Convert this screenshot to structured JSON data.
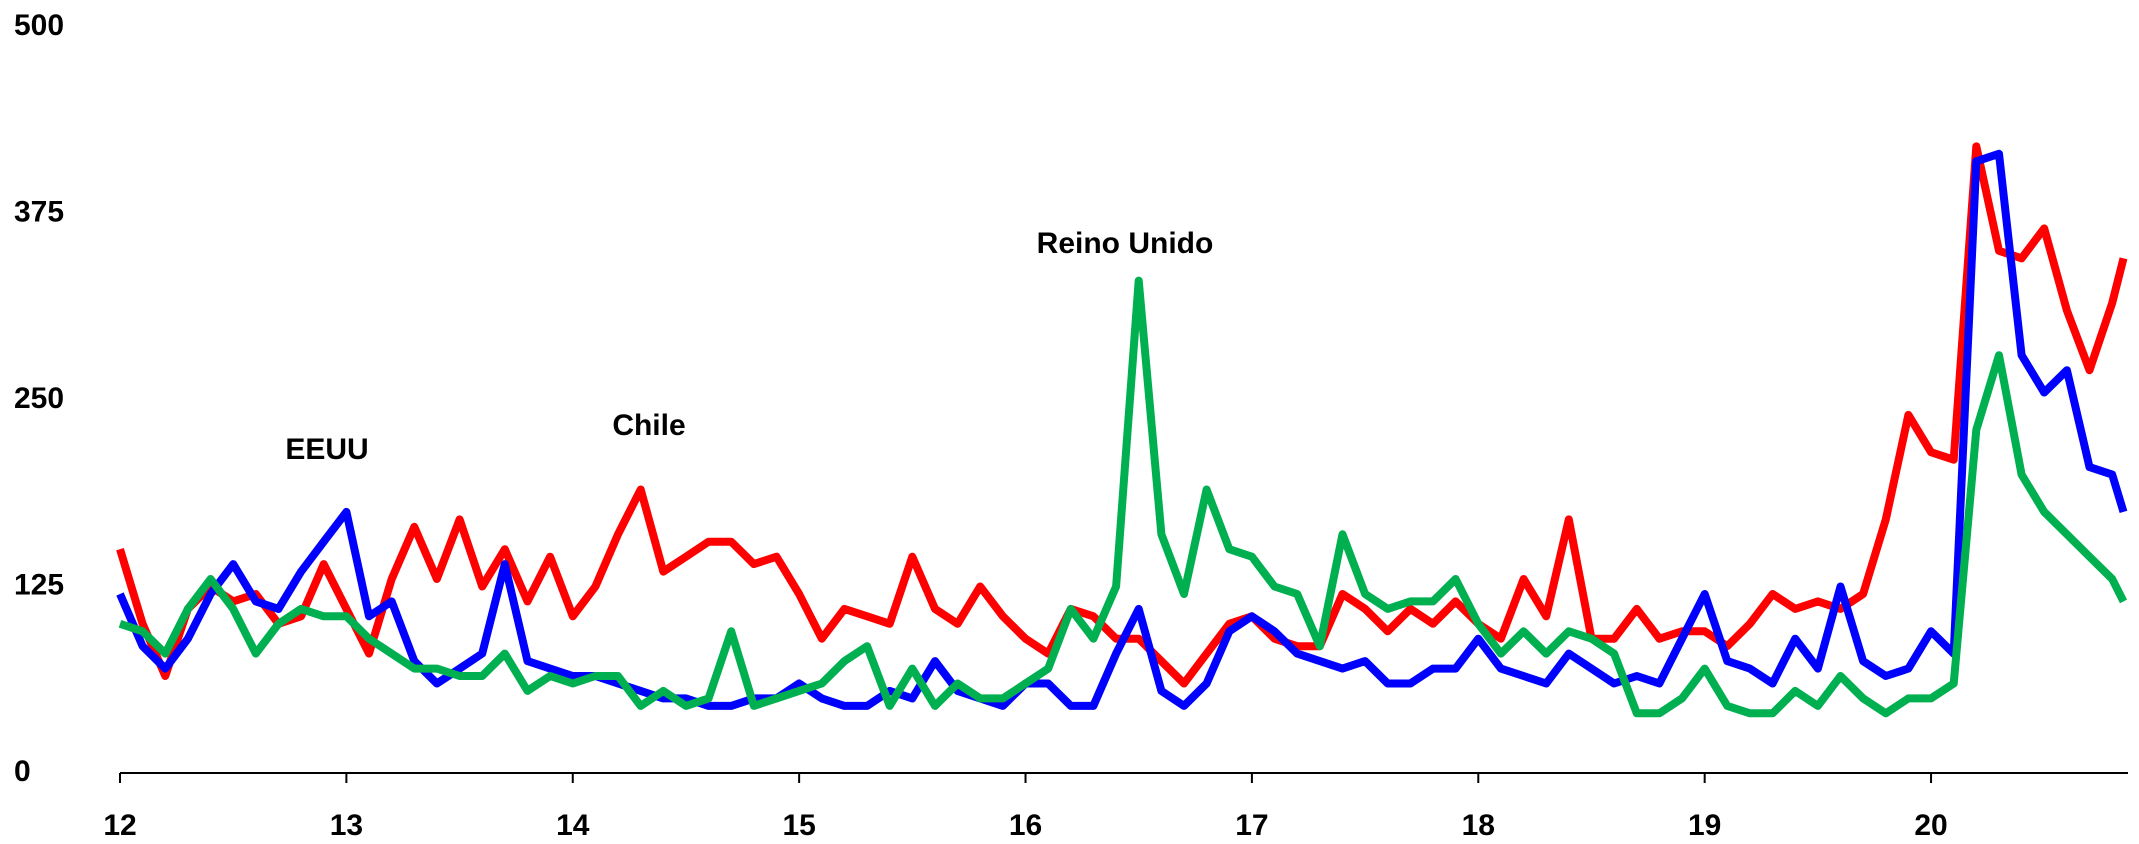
{
  "chart_data": {
    "type": "line",
    "x": [
      12.0,
      12.1,
      12.2,
      12.3,
      12.4,
      12.5,
      12.6,
      12.7,
      12.8,
      12.9,
      13.0,
      13.1,
      13.2,
      13.3,
      13.4,
      13.5,
      13.6,
      13.7,
      13.8,
      13.9,
      14.0,
      14.1,
      14.2,
      14.3,
      14.4,
      14.5,
      14.6,
      14.7,
      14.8,
      14.9,
      15.0,
      15.1,
      15.2,
      15.3,
      15.4,
      15.5,
      15.6,
      15.7,
      15.8,
      15.9,
      16.0,
      16.1,
      16.2,
      16.3,
      16.4,
      16.5,
      16.6,
      16.7,
      16.8,
      16.9,
      17.0,
      17.1,
      17.2,
      17.3,
      17.4,
      17.5,
      17.6,
      17.7,
      17.8,
      17.9,
      18.0,
      18.1,
      18.2,
      18.3,
      18.4,
      18.5,
      18.6,
      18.7,
      18.8,
      18.9,
      19.0,
      19.1,
      19.2,
      19.3,
      19.4,
      19.5,
      19.6,
      19.7,
      19.8,
      19.9,
      20.0,
      20.1,
      20.2,
      20.3,
      20.4,
      20.5,
      20.6,
      20.7,
      20.8,
      20.85
    ],
    "series": [
      {
        "name": "Chile",
        "color": "#ff0000",
        "values": [
          150,
          100,
          65,
          110,
          125,
          115,
          120,
          100,
          105,
          140,
          110,
          80,
          130,
          165,
          130,
          170,
          125,
          150,
          115,
          145,
          105,
          125,
          160,
          190,
          135,
          145,
          155,
          155,
          140,
          145,
          120,
          90,
          110,
          105,
          100,
          145,
          110,
          100,
          125,
          105,
          90,
          80,
          110,
          105,
          90,
          90,
          75,
          60,
          80,
          100,
          105,
          90,
          85,
          85,
          120,
          110,
          95,
          110,
          100,
          115,
          100,
          90,
          130,
          105,
          170,
          90,
          90,
          110,
          90,
          95,
          95,
          85,
          100,
          120,
          110,
          115,
          110,
          120,
          170,
          240,
          215,
          210,
          420,
          350,
          345,
          365,
          310,
          270,
          315,
          345
        ]
      },
      {
        "name": "EEUU",
        "color": "#0000ff",
        "values": [
          120,
          85,
          70,
          90,
          120,
          140,
          115,
          110,
          135,
          155,
          175,
          105,
          115,
          75,
          60,
          70,
          80,
          140,
          75,
          70,
          65,
          65,
          60,
          55,
          50,
          50,
          45,
          45,
          50,
          50,
          60,
          50,
          45,
          45,
          55,
          50,
          75,
          55,
          50,
          45,
          60,
          60,
          45,
          45,
          80,
          110,
          55,
          45,
          60,
          95,
          105,
          95,
          80,
          75,
          70,
          75,
          60,
          60,
          70,
          70,
          90,
          70,
          65,
          60,
          80,
          70,
          60,
          65,
          60,
          90,
          120,
          75,
          70,
          60,
          90,
          70,
          125,
          75,
          65,
          70,
          95,
          80,
          410,
          415,
          280,
          255,
          270,
          205,
          200,
          175
        ]
      },
      {
        "name": "Reino Unido",
        "color": "#00b050",
        "values": [
          100,
          95,
          80,
          110,
          130,
          110,
          80,
          100,
          110,
          105,
          105,
          90,
          80,
          70,
          70,
          65,
          65,
          80,
          55,
          65,
          60,
          65,
          65,
          45,
          55,
          45,
          50,
          95,
          45,
          50,
          55,
          60,
          75,
          85,
          45,
          70,
          45,
          60,
          50,
          50,
          60,
          70,
          110,
          90,
          125,
          330,
          160,
          120,
          190,
          150,
          145,
          125,
          120,
          85,
          160,
          120,
          110,
          115,
          115,
          130,
          100,
          80,
          95,
          80,
          95,
          90,
          80,
          40,
          40,
          50,
          70,
          45,
          40,
          40,
          55,
          45,
          65,
          50,
          40,
          50,
          50,
          60,
          230,
          280,
          200,
          175,
          160,
          145,
          130,
          115
        ]
      }
    ],
    "xlim": [
      12,
      20.87
    ],
    "xticks": [
      12,
      13,
      14,
      15,
      16,
      17,
      18,
      19,
      20
    ],
    "ylim": [
      0,
      500
    ],
    "yticks": [
      0,
      125,
      250,
      375,
      500
    ]
  }
}
